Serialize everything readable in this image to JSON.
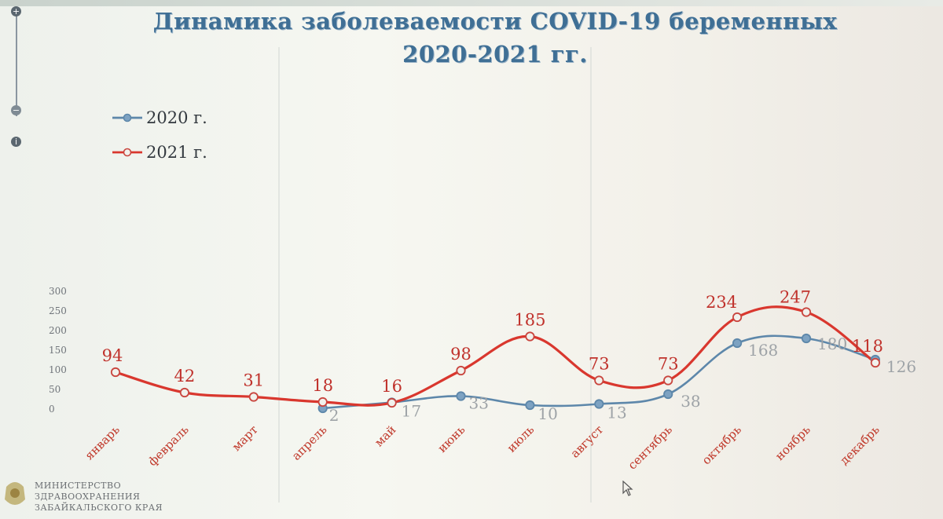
{
  "chart_data": {
    "type": "line",
    "title": "Динамика заболеваемости COVID-19 беременных",
    "subtitle": "2020-2021 гг.",
    "categories": [
      "январь",
      "февраль",
      "март",
      "апрель",
      "май",
      "июнь",
      "июль",
      "август",
      "сентябрь",
      "октябрь",
      "ноябрь",
      "декабрь"
    ],
    "yticks": [
      "0",
      "50",
      "100",
      "150",
      "200",
      "250",
      "300"
    ],
    "ylim": [
      0,
      300
    ],
    "series": [
      {
        "name": "2020 г.",
        "color": "#5d87aa",
        "label_color": "#9ea3a7",
        "values": [
          null,
          null,
          null,
          2,
          17,
          33,
          10,
          13,
          38,
          168,
          180,
          126
        ],
        "labels": [
          "",
          "",
          "",
          "2",
          "17",
          "33",
          "10",
          "13",
          "38",
          "168",
          "180",
          "126"
        ]
      },
      {
        "name": "2021 г.",
        "color": "#d9372e",
        "label_color": "#c0322c",
        "values": [
          94,
          42,
          31,
          18,
          16,
          98,
          185,
          73,
          73,
          234,
          247,
          118
        ],
        "labels": [
          "94",
          "42",
          "31",
          "18",
          "16",
          "98",
          "185",
          "73",
          "73",
          "234",
          "247",
          "118"
        ]
      }
    ],
    "legend": "top-left",
    "grid": false
  },
  "zoom": {
    "plus": "+",
    "minus": "−",
    "info": "i"
  },
  "ministry": [
    "МИНИСТЕРСТВО",
    "ЗДРАВООХРАНЕНИЯ",
    "ЗАБАЙКАЛЬСКОГО КРАЯ"
  ]
}
